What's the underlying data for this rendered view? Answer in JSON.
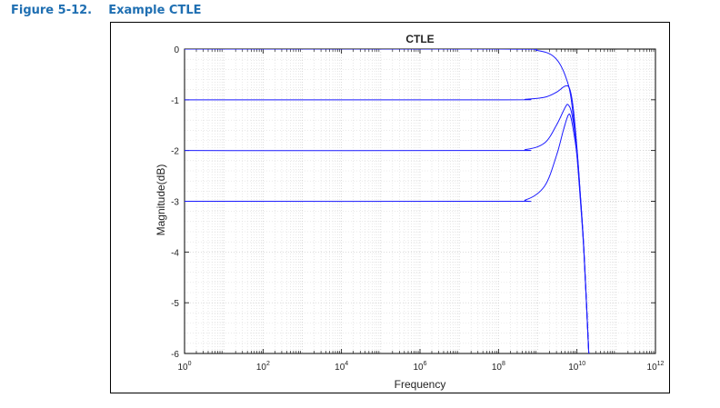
{
  "caption": {
    "number": "Figure 5-12.",
    "text": "Example CTLE"
  },
  "chart_data": {
    "type": "line",
    "title": "CTLE",
    "xlabel": "Frequency",
    "ylabel": "Magnitude(dB)",
    "x_scale": "log",
    "xlim": [
      1,
      1000000000000
    ],
    "ylim": [
      -6,
      0
    ],
    "grid": true,
    "x_ticks": [
      {
        "value": 1,
        "base": "10",
        "exp": "0"
      },
      {
        "value": 100,
        "base": "10",
        "exp": "2"
      },
      {
        "value": 10000,
        "base": "10",
        "exp": "4"
      },
      {
        "value": 1000000,
        "base": "10",
        "exp": "6"
      },
      {
        "value": 100000000,
        "base": "10",
        "exp": "8"
      },
      {
        "value": 10000000000,
        "base": "10",
        "exp": "10"
      },
      {
        "value": 1000000000000,
        "base": "10",
        "exp": "12"
      }
    ],
    "y_ticks": [
      {
        "value": 0,
        "label": "0"
      },
      {
        "value": -1,
        "label": "-1"
      },
      {
        "value": -2,
        "label": "-2"
      },
      {
        "value": -3,
        "label": "-3"
      },
      {
        "value": -4,
        "label": "-4"
      },
      {
        "value": -5,
        "label": "-5"
      },
      {
        "value": -6,
        "label": "-6"
      }
    ],
    "line_color": "#1a1aff",
    "series": [
      {
        "x": [
          1,
          100000000,
          1000000000,
          3000000000,
          6000000000,
          8000000000,
          10000000000,
          12000000000,
          15000000000,
          20000000000
        ],
        "y": [
          0,
          0,
          -0.03,
          -0.2,
          -0.7,
          -1.3,
          -2.1,
          -2.9,
          -4.0,
          -6.0
        ]
      },
      {
        "x": [
          1,
          100000000,
          500000000,
          1500000000,
          3000000000,
          5000000000,
          6500000000,
          8000000000,
          10000000000,
          12000000000,
          15000000000,
          20000000000
        ],
        "y": [
          -1,
          -1,
          -0.99,
          -0.95,
          -0.85,
          -0.73,
          -0.78,
          -1.15,
          -1.95,
          -2.8,
          -3.95,
          -6.0
        ]
      },
      {
        "x": [
          1,
          100000000,
          500000000,
          1500000000,
          3000000000,
          5000000000,
          6000000000,
          7500000000,
          10000000000,
          12000000000,
          15000000000,
          20000000000
        ],
        "y": [
          -2,
          -2,
          -1.98,
          -1.85,
          -1.5,
          -1.15,
          -1.1,
          -1.3,
          -2.0,
          -2.8,
          -3.95,
          -6.0
        ]
      },
      {
        "x": [
          1,
          100000000,
          500000000,
          1500000000,
          3000000000,
          4500000000,
          6000000000,
          7000000000,
          8500000000,
          10000000000,
          12000000000,
          15000000000,
          20000000000
        ],
        "y": [
          -3,
          -3,
          -2.97,
          -2.7,
          -2.1,
          -1.6,
          -1.3,
          -1.35,
          -1.7,
          -2.1,
          -2.85,
          -3.95,
          -6.0
        ]
      }
    ]
  }
}
